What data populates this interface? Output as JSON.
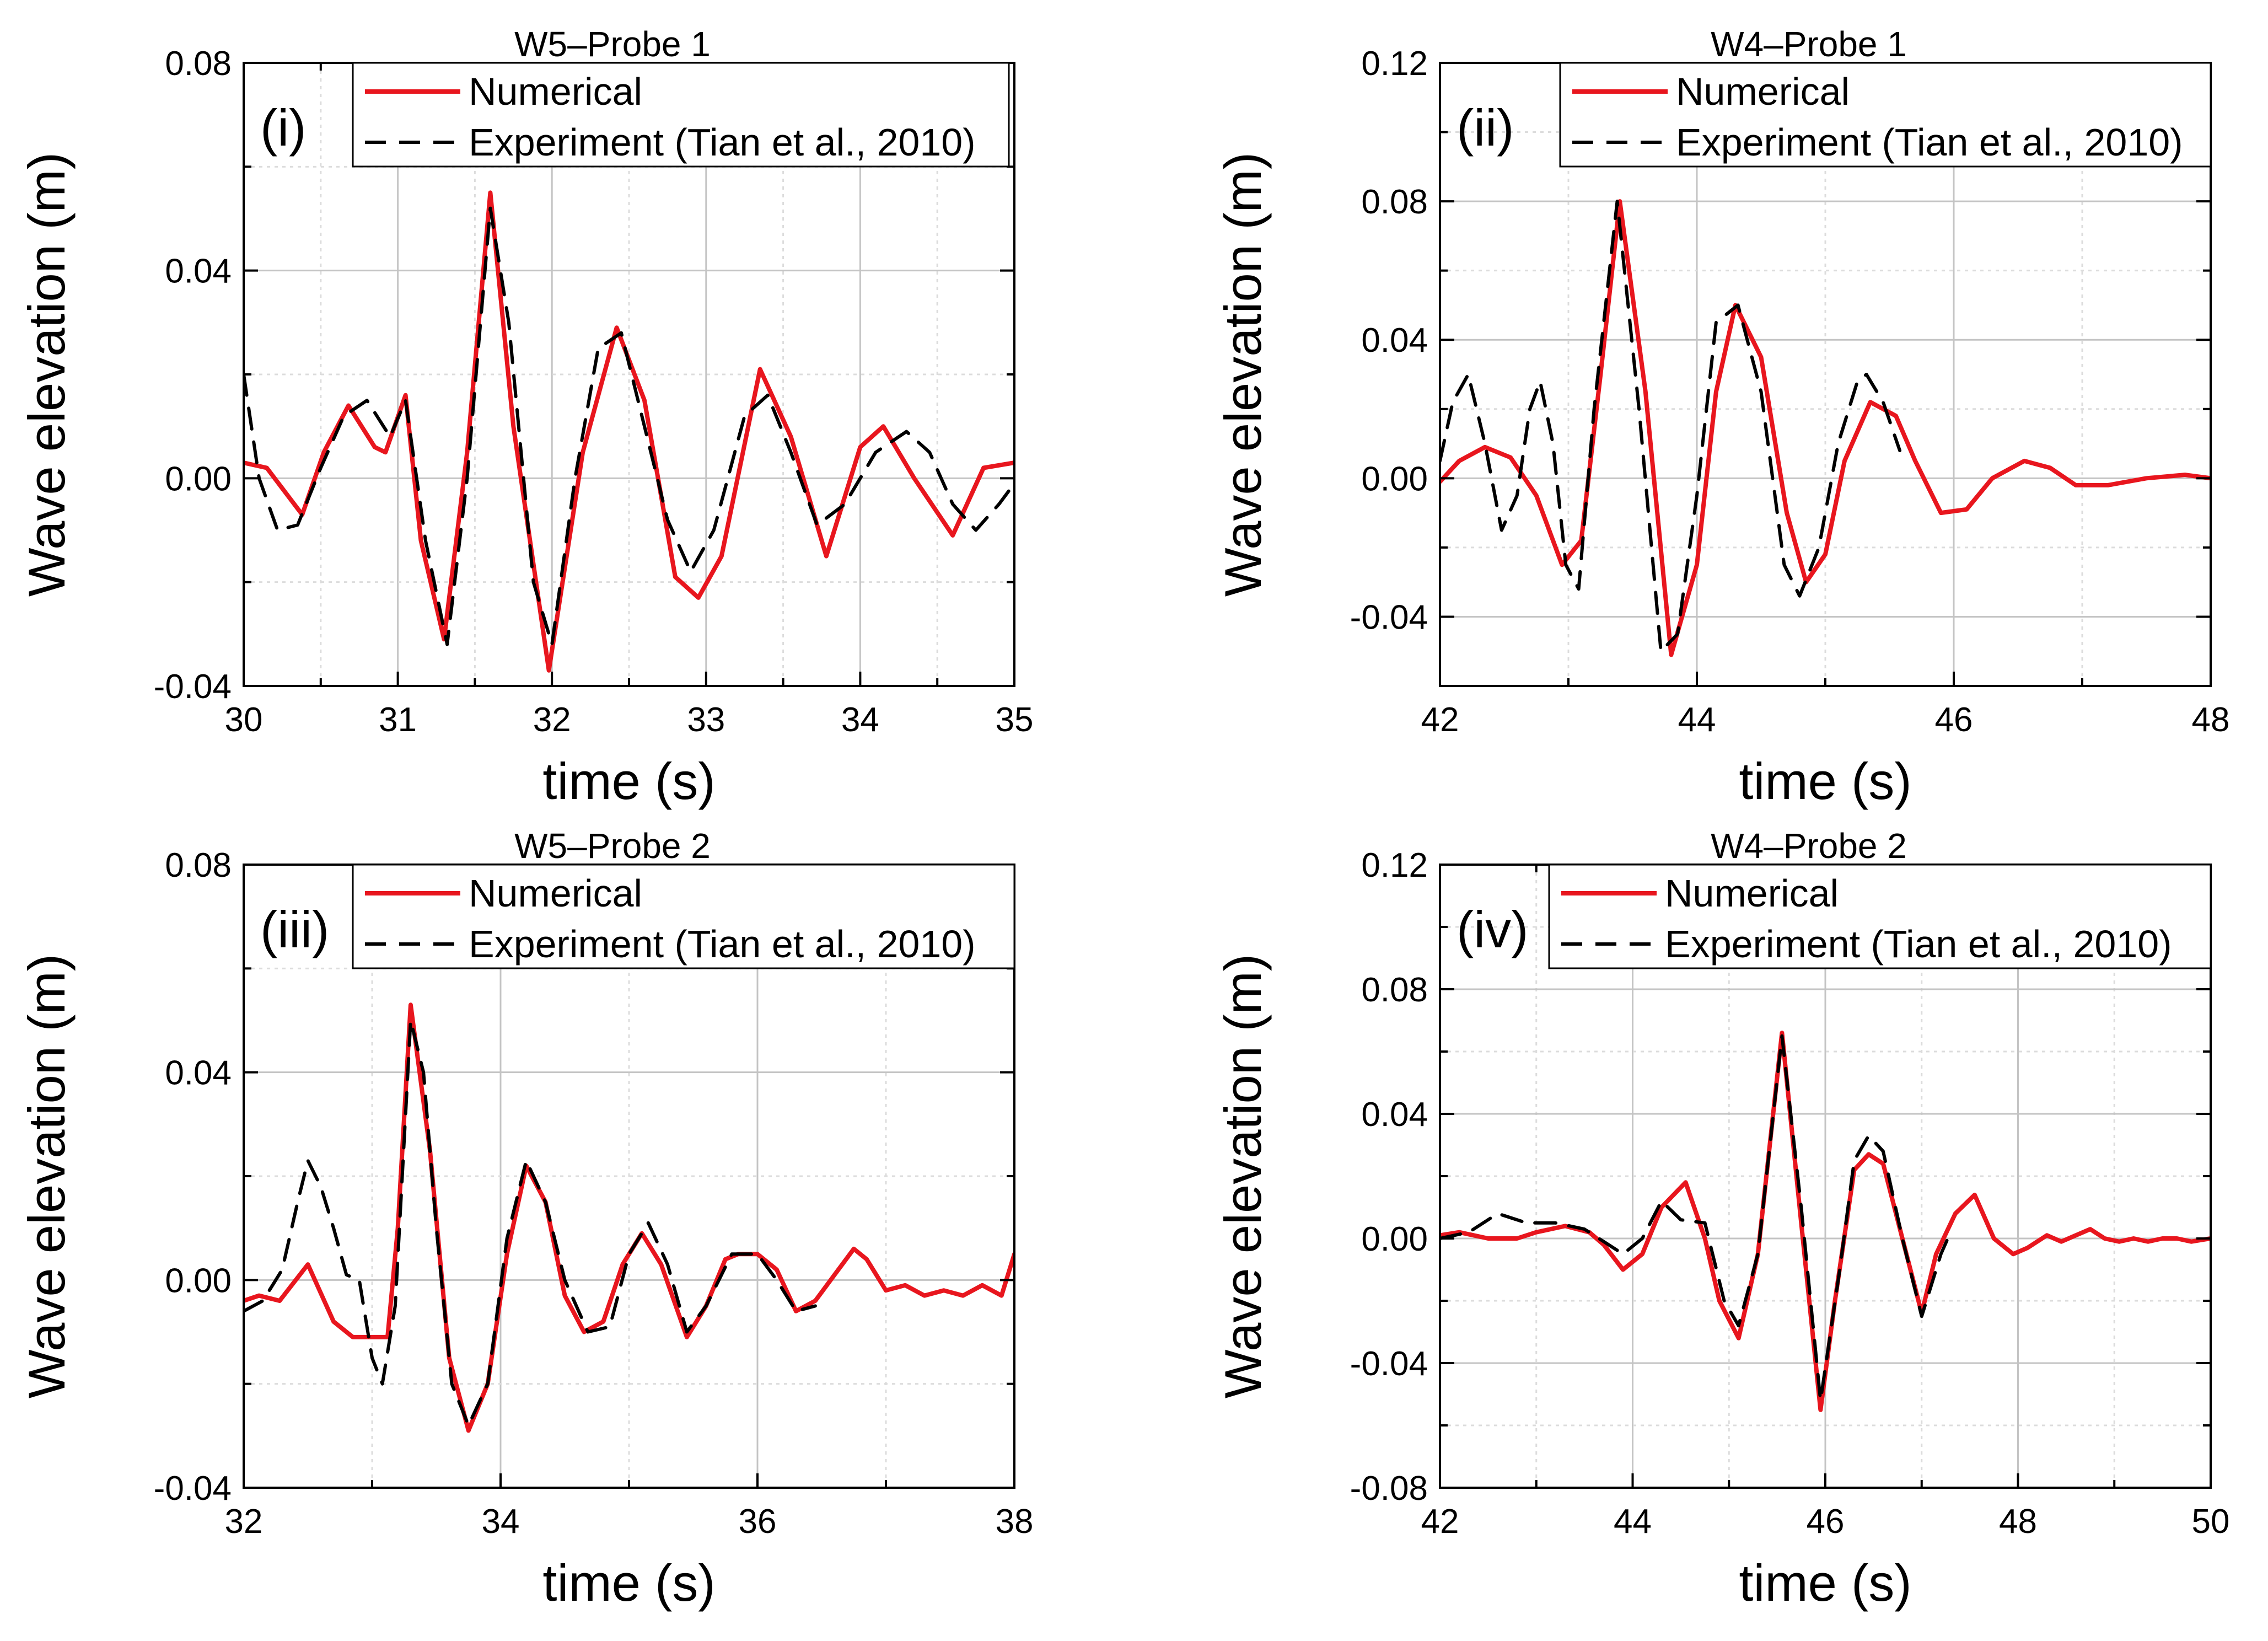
{
  "chart_data": [
    {
      "type": "line",
      "title": "W5–Probe 1",
      "panel_label": "(i)",
      "xlabel": "time (s)",
      "ylabel": "Wave elevation (m)",
      "xlim": [
        30,
        35
      ],
      "ylim": [
        -0.04,
        0.08
      ],
      "xticks": [
        "30",
        "31",
        "32",
        "33",
        "34",
        "35"
      ],
      "yticks": [
        "-0.04",
        "0.00",
        "0.04",
        "0.08"
      ],
      "grid": true,
      "legend_position": "top-right",
      "colors": {
        "numerical": "#e8161e",
        "experiment": "#000000"
      },
      "series": [
        {
          "name": "Numerical",
          "style": "solid",
          "x": [
            30.0,
            30.15,
            30.38,
            30.52,
            30.68,
            30.85,
            30.92,
            31.05,
            31.15,
            31.3,
            31.45,
            31.6,
            31.75,
            31.98,
            32.2,
            32.42,
            32.6,
            32.8,
            32.95,
            33.1,
            33.35,
            33.55,
            33.78,
            34.0,
            34.15,
            34.35,
            34.6,
            34.8,
            35.0
          ],
          "y": [
            0.003,
            0.002,
            -0.007,
            0.005,
            0.014,
            0.006,
            0.005,
            0.016,
            -0.012,
            -0.031,
            0.005,
            0.055,
            0.01,
            -0.037,
            0.005,
            0.029,
            0.015,
            -0.019,
            -0.023,
            -0.015,
            0.021,
            0.008,
            -0.015,
            0.006,
            0.01,
            0.0,
            -0.011,
            0.002,
            0.003
          ]
        },
        {
          "name": "Experiment (Tian et al., 2010)",
          "style": "dashed",
          "x": [
            30.0,
            30.1,
            30.22,
            30.35,
            30.5,
            30.65,
            30.8,
            30.95,
            31.05,
            31.18,
            31.32,
            31.45,
            31.6,
            31.72,
            31.88,
            32.0,
            32.15,
            32.3,
            32.45,
            32.6,
            32.75,
            32.9,
            33.05,
            33.25,
            33.4,
            33.55,
            33.72,
            33.9,
            34.1,
            34.3,
            34.45,
            34.6,
            34.75,
            34.9,
            35.0
          ],
          "y": [
            0.02,
            0.0,
            -0.01,
            -0.009,
            0.002,
            0.012,
            0.015,
            0.008,
            0.015,
            -0.012,
            -0.032,
            0.0,
            0.052,
            0.03,
            -0.02,
            -0.032,
            0.0,
            0.025,
            0.028,
            0.01,
            -0.008,
            -0.018,
            -0.01,
            0.012,
            0.016,
            0.005,
            -0.009,
            -0.005,
            0.005,
            0.009,
            0.005,
            -0.005,
            -0.01,
            -0.005,
            -0.001
          ]
        }
      ]
    },
    {
      "type": "line",
      "title": "W4–Probe 1",
      "panel_label": "(ii)",
      "xlabel": "time (s)",
      "ylabel": "Wave elevation (m)",
      "xlim": [
        42,
        48
      ],
      "ylim": [
        -0.06,
        0.12
      ],
      "xticks": [
        "42",
        "44",
        "46",
        "48"
      ],
      "yticks": [
        "-0.04",
        "0.00",
        "0.04",
        "0.08",
        "0.12"
      ],
      "grid": true,
      "legend_position": "top-right",
      "colors": {
        "numerical": "#e8161e",
        "experiment": "#000000"
      },
      "series": [
        {
          "name": "Numerical",
          "style": "solid",
          "x": [
            42.0,
            42.15,
            42.35,
            42.55,
            42.75,
            42.95,
            43.1,
            43.25,
            43.4,
            43.6,
            43.8,
            44.0,
            44.15,
            44.3,
            44.5,
            44.7,
            44.85,
            45.0,
            45.15,
            45.35,
            45.55,
            45.7,
            45.9,
            46.1,
            46.3,
            46.55,
            46.75,
            46.95,
            47.2,
            47.5,
            47.8,
            48.0
          ],
          "y": [
            -0.001,
            0.005,
            0.009,
            0.006,
            -0.005,
            -0.025,
            -0.018,
            0.03,
            0.08,
            0.025,
            -0.051,
            -0.025,
            0.025,
            0.05,
            0.035,
            -0.01,
            -0.03,
            -0.022,
            0.005,
            0.022,
            0.018,
            0.005,
            -0.01,
            -0.009,
            0.0,
            0.005,
            0.003,
            -0.002,
            -0.002,
            0.0,
            0.001,
            0.0
          ]
        },
        {
          "name": "Experiment (Tian et al., 2010)",
          "style": "dashed",
          "x": [
            42.0,
            42.1,
            42.22,
            42.35,
            42.48,
            42.6,
            42.7,
            42.78,
            42.88,
            42.98,
            43.08,
            43.2,
            43.38,
            43.55,
            43.72,
            43.85,
            44.0,
            44.15,
            44.32,
            44.5,
            44.68,
            44.8,
            44.95,
            45.1,
            45.25,
            45.32,
            45.45,
            45.58
          ],
          "y": [
            0.005,
            0.022,
            0.03,
            0.01,
            -0.015,
            -0.005,
            0.02,
            0.028,
            0.01,
            -0.025,
            -0.032,
            0.02,
            0.08,
            0.02,
            -0.05,
            -0.045,
            -0.005,
            0.045,
            0.05,
            0.025,
            -0.025,
            -0.034,
            -0.02,
            0.01,
            0.028,
            0.03,
            0.022,
            0.008
          ]
        }
      ]
    },
    {
      "type": "line",
      "title": "W5–Probe 2",
      "panel_label": "(iii)",
      "xlabel": "time (s)",
      "ylabel": "Wave elevation (m)",
      "xlim": [
        32,
        38
      ],
      "ylim": [
        -0.04,
        0.08
      ],
      "xticks": [
        "32",
        "34",
        "36",
        "38"
      ],
      "yticks": [
        "-0.04",
        "0.00",
        "0.04",
        "0.08"
      ],
      "grid": true,
      "legend_position": "top-right",
      "colors": {
        "numerical": "#e8161e",
        "experiment": "#000000"
      },
      "series": [
        {
          "name": "Numerical",
          "style": "solid",
          "x": [
            32.0,
            32.12,
            32.28,
            32.5,
            32.7,
            32.85,
            33.0,
            33.12,
            33.2,
            33.3,
            33.45,
            33.6,
            33.75,
            33.9,
            34.05,
            34.2,
            34.35,
            34.5,
            34.65,
            34.8,
            34.95,
            35.1,
            35.25,
            35.45,
            35.6,
            35.75,
            35.85,
            36.0,
            36.15,
            36.3,
            36.45,
            36.6,
            36.75,
            36.85,
            37.0,
            37.15,
            37.3,
            37.45,
            37.6,
            37.75,
            37.9,
            38.0
          ],
          "y": [
            -0.004,
            -0.003,
            -0.004,
            0.003,
            -0.008,
            -0.011,
            -0.011,
            -0.011,
            0.01,
            0.053,
            0.025,
            -0.015,
            -0.029,
            -0.02,
            0.005,
            0.022,
            0.015,
            -0.003,
            -0.01,
            -0.008,
            0.003,
            0.009,
            0.003,
            -0.011,
            -0.005,
            0.004,
            0.005,
            0.005,
            0.002,
            -0.006,
            -0.004,
            0.001,
            0.006,
            0.004,
            -0.002,
            -0.001,
            -0.003,
            -0.002,
            -0.003,
            -0.001,
            -0.003,
            0.005
          ]
        },
        {
          "name": "Experiment (Tian et al., 2010)",
          "style": "dashed",
          "x": [
            32.0,
            32.15,
            32.3,
            32.42,
            32.5,
            32.6,
            32.7,
            32.8,
            32.9,
            33.0,
            33.08,
            33.18,
            33.3,
            33.4,
            33.5,
            33.62,
            33.75,
            33.9,
            34.05,
            34.2,
            34.35,
            34.5,
            34.68,
            34.85,
            35.0,
            35.15,
            35.3,
            35.45,
            35.6,
            35.8,
            36.0,
            36.15,
            36.3,
            36.45
          ],
          "y": [
            -0.006,
            -0.004,
            0.002,
            0.015,
            0.023,
            0.018,
            0.01,
            0.001,
            0.0,
            -0.015,
            -0.02,
            -0.005,
            0.05,
            0.04,
            0.01,
            -0.02,
            -0.028,
            -0.02,
            0.008,
            0.023,
            0.015,
            0.0,
            -0.01,
            -0.009,
            0.005,
            0.011,
            0.003,
            -0.01,
            -0.005,
            0.005,
            0.005,
            0.0,
            -0.006,
            -0.005
          ]
        }
      ]
    },
    {
      "type": "line",
      "title": "W4–Probe 2",
      "panel_label": "(iv)",
      "xlabel": "time (s)",
      "ylabel": "Wave elevation (m)",
      "xlim": [
        42,
        50
      ],
      "ylim": [
        -0.08,
        0.12
      ],
      "xticks": [
        "42",
        "44",
        "46",
        "48",
        "50"
      ],
      "yticks": [
        "-0.08",
        "-0.04",
        "0.00",
        "0.04",
        "0.08",
        "0.12"
      ],
      "grid": true,
      "legend_position": "top-right",
      "colors": {
        "numerical": "#e8161e",
        "experiment": "#000000"
      },
      "series": [
        {
          "name": "Numerical",
          "style": "solid",
          "x": [
            42.0,
            42.2,
            42.5,
            42.8,
            43.0,
            43.3,
            43.55,
            43.7,
            43.9,
            44.1,
            44.3,
            44.55,
            44.75,
            44.9,
            45.1,
            45.3,
            45.55,
            45.75,
            45.95,
            46.1,
            46.3,
            46.45,
            46.6,
            46.8,
            47.0,
            47.15,
            47.35,
            47.55,
            47.75,
            47.95,
            48.1,
            48.3,
            48.45,
            48.6,
            48.75,
            48.9,
            49.05,
            49.2,
            49.35,
            49.5,
            49.65,
            49.8,
            50.0
          ],
          "y": [
            0.001,
            0.002,
            0.0,
            0.0,
            0.002,
            0.004,
            0.002,
            -0.002,
            -0.01,
            -0.005,
            0.01,
            0.018,
            0.0,
            -0.02,
            -0.032,
            -0.005,
            0.066,
            0.005,
            -0.055,
            -0.02,
            0.022,
            0.027,
            0.024,
            0.0,
            -0.024,
            -0.005,
            0.008,
            0.014,
            0.0,
            -0.005,
            -0.003,
            0.001,
            -0.001,
            0.001,
            0.003,
            0.0,
            -0.001,
            0.0,
            -0.001,
            0.0,
            0.0,
            -0.001,
            0.0
          ]
        },
        {
          "name": "Experiment (Tian et al., 2010)",
          "style": "dashed",
          "x": [
            42.0,
            42.3,
            42.6,
            42.9,
            43.2,
            43.5,
            43.75,
            43.9,
            44.1,
            44.3,
            44.5,
            44.75,
            44.95,
            45.1,
            45.3,
            45.55,
            45.75,
            45.95,
            46.15,
            46.3,
            46.45,
            46.6,
            46.8,
            47.0,
            47.2,
            47.3
          ],
          "y": [
            0.0,
            0.002,
            0.008,
            0.005,
            0.005,
            0.003,
            -0.002,
            -0.005,
            0.0,
            0.012,
            0.006,
            0.005,
            -0.02,
            -0.028,
            -0.005,
            0.065,
            0.01,
            -0.052,
            -0.01,
            0.025,
            0.033,
            0.028,
            0.0,
            -0.025,
            -0.005,
            0.002
          ]
        }
      ]
    }
  ]
}
